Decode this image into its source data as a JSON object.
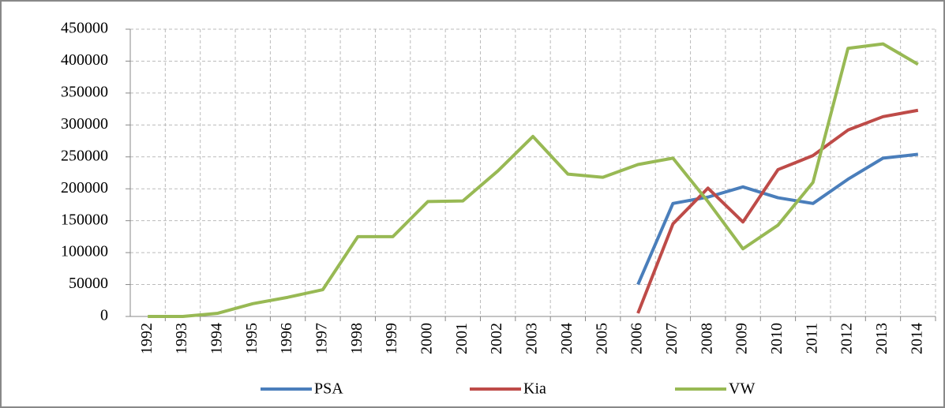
{
  "chart_data": {
    "type": "line",
    "categories": [
      "1992",
      "1993",
      "1994",
      "1995",
      "1996",
      "1997",
      "1998",
      "1999",
      "2000",
      "2001",
      "2002",
      "2003",
      "2004",
      "2005",
      "2006",
      "2007",
      "2008",
      "2009",
      "2010",
      "2011",
      "2012",
      "2013",
      "2014"
    ],
    "series": [
      {
        "name": "PSA",
        "color": "#4a7ebb",
        "values": [
          null,
          null,
          null,
          null,
          null,
          null,
          null,
          null,
          null,
          null,
          null,
          null,
          null,
          null,
          50000,
          177000,
          187000,
          203000,
          186000,
          177000,
          215000,
          248000,
          254000
        ]
      },
      {
        "name": "Kia",
        "color": "#be4b48",
        "values": [
          null,
          null,
          null,
          null,
          null,
          null,
          null,
          null,
          null,
          null,
          null,
          null,
          null,
          null,
          5000,
          145000,
          201000,
          148000,
          230000,
          252000,
          292000,
          313000,
          323000
        ]
      },
      {
        "name": "VW",
        "color": "#98b954",
        "values": [
          0,
          0,
          5000,
          20000,
          30000,
          42000,
          125000,
          125000,
          180000,
          181000,
          228000,
          282000,
          223000,
          218000,
          238000,
          248000,
          180000,
          106000,
          143000,
          210000,
          420000,
          427000,
          395000
        ]
      }
    ],
    "ylim": [
      0,
      450000
    ],
    "yticks": [
      0,
      50000,
      100000,
      150000,
      200000,
      250000,
      300000,
      350000,
      400000,
      450000
    ],
    "grid": true,
    "legend": "bottom"
  }
}
